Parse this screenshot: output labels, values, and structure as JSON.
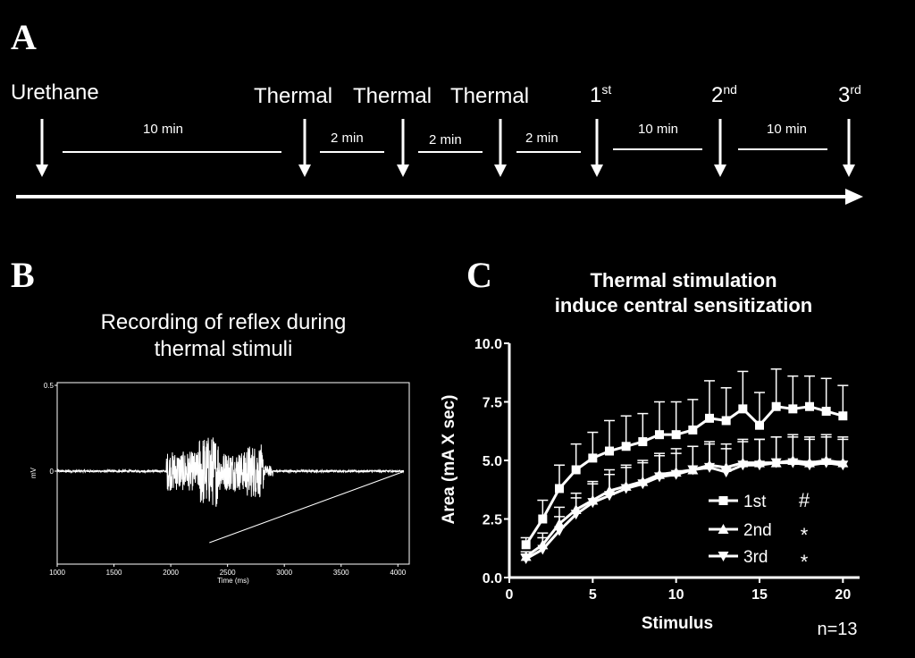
{
  "panels": {
    "a": "A",
    "b": "B",
    "c": "C"
  },
  "timeline": {
    "events": [
      {
        "label": "Urethane",
        "sup": ""
      },
      {
        "label": "Thermal",
        "sup": ""
      },
      {
        "label": "Thermal",
        "sup": ""
      },
      {
        "label": "Thermal",
        "sup": ""
      },
      {
        "label": "1",
        "sup": "st"
      },
      {
        "label": "2",
        "sup": "nd"
      },
      {
        "label": "3",
        "sup": "rd"
      }
    ],
    "intervals": [
      "10 min",
      "2 min",
      "2 min",
      "2 min",
      "10 min",
      "10 min"
    ]
  },
  "recording": {
    "title_line1": "Recording of reflex during",
    "title_line2": "thermal stimuli",
    "xlabel": "Time (ms)",
    "ylabel": "mV",
    "xticks": [
      "1000",
      "1500",
      "2000",
      "2500",
      "3000",
      "3500",
      "4000"
    ],
    "yticks": [
      "0.5",
      "0"
    ]
  },
  "chart_data": {
    "type": "line",
    "title_line1": "Thermal stimulation",
    "title_line2": "induce central sensitization",
    "xlabel": "Stimulus",
    "ylabel": "Area (mA X sec)",
    "xlim": [
      0,
      21
    ],
    "ylim": [
      0,
      10
    ],
    "xticks": [
      "0",
      "5",
      "10",
      "15",
      "20"
    ],
    "yticks": [
      "0.0",
      "2.5",
      "5.0",
      "7.5",
      "10.0"
    ],
    "x": [
      1,
      2,
      3,
      4,
      5,
      6,
      7,
      8,
      9,
      10,
      11,
      12,
      13,
      14,
      15,
      16,
      17,
      18,
      19,
      20
    ],
    "series": [
      {
        "name": "1st",
        "marker": "square",
        "sig": "#",
        "values": [
          1.4,
          2.5,
          3.8,
          4.6,
          5.1,
          5.4,
          5.6,
          5.8,
          6.1,
          6.1,
          6.3,
          6.8,
          6.7,
          7.2,
          6.5,
          7.3,
          7.2,
          7.3,
          7.1,
          6.9
        ],
        "err": [
          0.3,
          0.8,
          1.0,
          1.1,
          1.1,
          1.3,
          1.3,
          1.2,
          1.4,
          1.4,
          1.3,
          1.6,
          1.4,
          1.6,
          1.4,
          1.6,
          1.4,
          1.3,
          1.4,
          1.3
        ]
      },
      {
        "name": "2nd",
        "marker": "triangle-up",
        "sig": "*",
        "values": [
          0.9,
          1.4,
          2.3,
          2.9,
          3.3,
          3.7,
          3.9,
          4.1,
          4.4,
          4.5,
          4.6,
          4.8,
          4.7,
          4.9,
          4.9,
          4.9,
          5.0,
          4.9,
          5.0,
          4.9
        ],
        "err": [
          0.2,
          0.5,
          0.7,
          0.7,
          0.8,
          0.9,
          0.9,
          0.9,
          0.9,
          1.0,
          1.0,
          1.0,
          1.0,
          1.0,
          1.0,
          1.1,
          1.1,
          1.1,
          1.1,
          1.1
        ]
      },
      {
        "name": "3rd",
        "marker": "triangle-down",
        "sig": "*",
        "values": [
          0.8,
          1.2,
          2.0,
          2.7,
          3.2,
          3.5,
          3.8,
          4.0,
          4.3,
          4.4,
          4.6,
          4.7,
          4.5,
          4.8,
          4.8,
          4.9,
          4.9,
          4.8,
          4.9,
          4.8
        ],
        "err": [
          0.2,
          0.5,
          0.6,
          0.7,
          0.8,
          0.9,
          0.9,
          0.9,
          0.9,
          0.9,
          1.0,
          1.0,
          1.0,
          1.0,
          1.1,
          1.1,
          1.1,
          1.1,
          1.1,
          1.1
        ]
      }
    ],
    "legend_position": "lower-right",
    "annotation": "n=13"
  }
}
